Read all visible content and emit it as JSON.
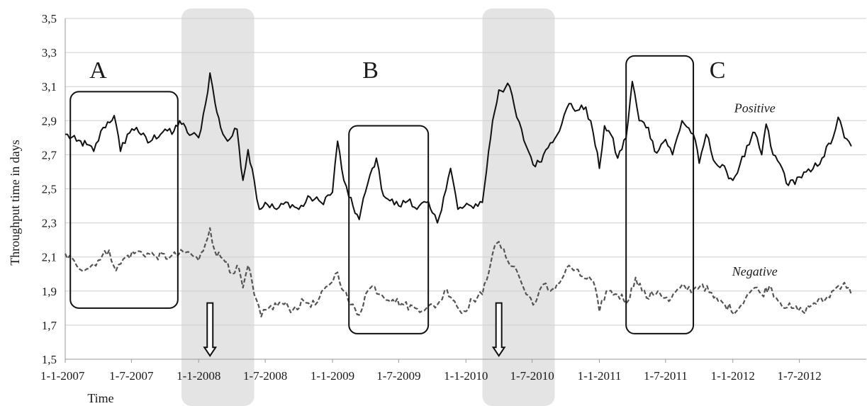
{
  "chart_data": {
    "type": "line",
    "xlabel": "Time",
    "ylabel": "Throughput time in days",
    "ylim": [
      1.5,
      3.5
    ],
    "xlim": [
      "2007-01-01",
      "2012-12-31"
    ],
    "y_ticks": [
      "1,5",
      "1,7",
      "1,9",
      "2,1",
      "2,3",
      "2,5",
      "2,7",
      "2,9",
      "3,1",
      "3,3",
      "3,5"
    ],
    "x_ticks": [
      {
        "date": "2007-01-01",
        "label": "1-1-2007"
      },
      {
        "date": "2007-07-01",
        "label": "1-7-2007"
      },
      {
        "date": "2008-01-01",
        "label": "1-1-2008"
      },
      {
        "date": "2008-07-01",
        "label": "1-7-2008"
      },
      {
        "date": "2009-01-01",
        "label": "1-1-2009"
      },
      {
        "date": "2009-07-01",
        "label": "1-7-2009"
      },
      {
        "date": "2010-01-01",
        "label": "1-1-2010"
      },
      {
        "date": "2010-07-01",
        "label": "1-7-2010"
      },
      {
        "date": "2011-01-01",
        "label": "1-1-2011"
      },
      {
        "date": "2011-07-01",
        "label": "1-7-2011"
      },
      {
        "date": "2012-01-01",
        "label": "1-1-2012"
      },
      {
        "date": "2012-07-01",
        "label": "1-7-2012"
      }
    ],
    "grid": "horizontal",
    "shaded_periods": [
      {
        "start": "2007-11-15",
        "end": "2008-06-01"
      },
      {
        "start": "2010-02-15",
        "end": "2010-09-01"
      }
    ],
    "arrows": [
      {
        "date": "2008-02-01",
        "y_top": 1.83,
        "y_bottom": 1.52
      },
      {
        "date": "2010-04-01",
        "y_top": 1.83,
        "y_bottom": 1.52
      }
    ],
    "boxes": [
      {
        "label": "A",
        "x_start": "2007-01-15",
        "x_end": "2007-11-05",
        "y_low": 1.8,
        "y_high": 3.07
      },
      {
        "label": "B",
        "x_start": "2009-02-15",
        "x_end": "2009-09-20",
        "y_low": 1.65,
        "y_high": 2.87
      },
      {
        "label": "C",
        "x_start": "2011-03-15",
        "x_end": "2011-09-15",
        "y_low": 1.65,
        "y_high": 3.28
      }
    ],
    "panel_labels": [
      {
        "text": "A",
        "date": "2007-04-01",
        "y": 3.15
      },
      {
        "text": "B",
        "date": "2009-04-15",
        "y": 3.15
      },
      {
        "text": "C",
        "date": "2011-11-20",
        "y": 3.15
      }
    ],
    "series": [
      {
        "name": "Positive",
        "label_date": "2012-03-01",
        "label_y": 2.95,
        "color": "#111111",
        "style": "solid",
        "points": [
          [
            "2007-01-01",
            2.82
          ],
          [
            "2007-02-01",
            2.78
          ],
          [
            "2007-03-01",
            2.76
          ],
          [
            "2007-03-20",
            2.72
          ],
          [
            "2007-04-15",
            2.86
          ],
          [
            "2007-05-15",
            2.93
          ],
          [
            "2007-06-01",
            2.72
          ],
          [
            "2007-06-20",
            2.82
          ],
          [
            "2007-07-15",
            2.86
          ],
          [
            "2007-08-15",
            2.77
          ],
          [
            "2007-10-01",
            2.85
          ],
          [
            "2007-10-20",
            2.82
          ],
          [
            "2007-11-10",
            2.9
          ],
          [
            "2007-12-01",
            2.83
          ],
          [
            "2008-01-01",
            2.8
          ],
          [
            "2008-01-20",
            3.0
          ],
          [
            "2008-02-01",
            3.18
          ],
          [
            "2008-02-15",
            3.0
          ],
          [
            "2008-03-01",
            2.86
          ],
          [
            "2008-03-20",
            2.78
          ],
          [
            "2008-04-15",
            2.85
          ],
          [
            "2008-05-01",
            2.55
          ],
          [
            "2008-05-15",
            2.73
          ],
          [
            "2008-06-01",
            2.55
          ],
          [
            "2008-06-15",
            2.38
          ],
          [
            "2008-07-01",
            2.42
          ],
          [
            "2008-08-01",
            2.38
          ],
          [
            "2008-09-01",
            2.42
          ],
          [
            "2008-10-01",
            2.38
          ],
          [
            "2008-11-01",
            2.45
          ],
          [
            "2008-12-01",
            2.42
          ],
          [
            "2009-01-01",
            2.48
          ],
          [
            "2009-01-15",
            2.78
          ],
          [
            "2009-02-01",
            2.55
          ],
          [
            "2009-02-15",
            2.45
          ],
          [
            "2009-03-15",
            2.32
          ],
          [
            "2009-04-01",
            2.48
          ],
          [
            "2009-04-20",
            2.62
          ],
          [
            "2009-05-01",
            2.68
          ],
          [
            "2009-05-15",
            2.5
          ],
          [
            "2009-06-01",
            2.44
          ],
          [
            "2009-07-01",
            2.4
          ],
          [
            "2009-08-01",
            2.44
          ],
          [
            "2009-08-20",
            2.38
          ],
          [
            "2009-09-15",
            2.42
          ],
          [
            "2009-10-01",
            2.36
          ],
          [
            "2009-10-15",
            2.3
          ],
          [
            "2009-11-01",
            2.45
          ],
          [
            "2009-11-20",
            2.62
          ],
          [
            "2009-12-10",
            2.38
          ],
          [
            "2010-01-15",
            2.4
          ],
          [
            "2010-02-15",
            2.42
          ],
          [
            "2010-03-15",
            2.9
          ],
          [
            "2010-04-01",
            3.08
          ],
          [
            "2010-05-01",
            3.1
          ],
          [
            "2010-05-20",
            2.92
          ],
          [
            "2010-06-15",
            2.75
          ],
          [
            "2010-07-10",
            2.63
          ],
          [
            "2010-08-01",
            2.7
          ],
          [
            "2010-08-20",
            2.77
          ],
          [
            "2010-09-20",
            2.88
          ],
          [
            "2010-10-10",
            3.0
          ],
          [
            "2010-11-01",
            2.96
          ],
          [
            "2010-11-25",
            2.98
          ],
          [
            "2010-12-15",
            2.83
          ],
          [
            "2011-01-01",
            2.62
          ],
          [
            "2011-01-15",
            2.87
          ],
          [
            "2011-02-01",
            2.82
          ],
          [
            "2011-02-20",
            2.68
          ],
          [
            "2011-03-15",
            2.8
          ],
          [
            "2011-04-01",
            3.13
          ],
          [
            "2011-04-20",
            2.9
          ],
          [
            "2011-05-15",
            2.86
          ],
          [
            "2011-06-01",
            2.72
          ],
          [
            "2011-07-01",
            2.79
          ],
          [
            "2011-07-20",
            2.7
          ],
          [
            "2011-08-15",
            2.9
          ],
          [
            "2011-09-15",
            2.82
          ],
          [
            "2011-10-01",
            2.65
          ],
          [
            "2011-10-20",
            2.82
          ],
          [
            "2011-11-15",
            2.65
          ],
          [
            "2011-12-15",
            2.6
          ],
          [
            "2012-01-01",
            2.55
          ],
          [
            "2012-01-20",
            2.64
          ],
          [
            "2012-02-15",
            2.76
          ],
          [
            "2012-03-01",
            2.83
          ],
          [
            "2012-03-20",
            2.7
          ],
          [
            "2012-04-01",
            2.88
          ],
          [
            "2012-04-20",
            2.7
          ],
          [
            "2012-05-15",
            2.62
          ],
          [
            "2012-06-01",
            2.52
          ],
          [
            "2012-07-01",
            2.57
          ],
          [
            "2012-08-01",
            2.6
          ],
          [
            "2012-09-01",
            2.68
          ],
          [
            "2012-10-01",
            2.8
          ],
          [
            "2012-10-15",
            2.92
          ],
          [
            "2012-11-01",
            2.8
          ],
          [
            "2012-11-20",
            2.75
          ]
        ]
      },
      {
        "name": "Negative",
        "label_date": "2012-03-01",
        "label_y": 1.99,
        "color": "#555555",
        "style": "dashed",
        "points": [
          [
            "2007-01-01",
            2.12
          ],
          [
            "2007-02-01",
            2.05
          ],
          [
            "2007-03-01",
            2.03
          ],
          [
            "2007-04-01",
            2.08
          ],
          [
            "2007-05-01",
            2.14
          ],
          [
            "2007-05-20",
            2.02
          ],
          [
            "2007-06-15",
            2.1
          ],
          [
            "2007-07-15",
            2.13
          ],
          [
            "2007-09-01",
            2.11
          ],
          [
            "2007-10-15",
            2.1
          ],
          [
            "2007-12-01",
            2.13
          ],
          [
            "2008-01-01",
            2.08
          ],
          [
            "2008-01-20",
            2.18
          ],
          [
            "2008-02-01",
            2.27
          ],
          [
            "2008-02-15",
            2.13
          ],
          [
            "2008-03-01",
            2.1
          ],
          [
            "2008-03-20",
            2.07
          ],
          [
            "2008-04-01",
            2.0
          ],
          [
            "2008-04-15",
            2.05
          ],
          [
            "2008-05-01",
            1.92
          ],
          [
            "2008-05-15",
            2.05
          ],
          [
            "2008-06-01",
            1.88
          ],
          [
            "2008-06-20",
            1.75
          ],
          [
            "2008-07-10",
            1.8
          ],
          [
            "2008-08-15",
            1.83
          ],
          [
            "2008-09-15",
            1.79
          ],
          [
            "2008-10-15",
            1.84
          ],
          [
            "2008-11-15",
            1.82
          ],
          [
            "2008-12-20",
            1.93
          ],
          [
            "2009-01-15",
            2.01
          ],
          [
            "2009-02-01",
            1.9
          ],
          [
            "2009-02-20",
            1.82
          ],
          [
            "2009-03-15",
            1.76
          ],
          [
            "2009-04-01",
            1.88
          ],
          [
            "2009-04-20",
            1.93
          ],
          [
            "2009-05-15",
            1.88
          ],
          [
            "2009-06-15",
            1.85
          ],
          [
            "2009-07-15",
            1.82
          ],
          [
            "2009-08-15",
            1.8
          ],
          [
            "2009-09-15",
            1.8
          ],
          [
            "2009-10-15",
            1.82
          ],
          [
            "2009-11-10",
            1.91
          ],
          [
            "2009-12-01",
            1.84
          ],
          [
            "2009-12-20",
            1.77
          ],
          [
            "2010-01-20",
            1.85
          ],
          [
            "2010-02-15",
            1.88
          ],
          [
            "2010-03-15",
            2.12
          ],
          [
            "2010-04-01",
            2.19
          ],
          [
            "2010-04-20",
            2.1
          ],
          [
            "2010-05-20",
            2.02
          ],
          [
            "2010-06-15",
            1.88
          ],
          [
            "2010-07-10",
            1.83
          ],
          [
            "2010-08-01",
            1.94
          ],
          [
            "2010-08-20",
            1.9
          ],
          [
            "2010-09-20",
            1.97
          ],
          [
            "2010-10-10",
            2.05
          ],
          [
            "2010-11-10",
            1.99
          ],
          [
            "2010-12-15",
            1.96
          ],
          [
            "2011-01-01",
            1.78
          ],
          [
            "2011-01-20",
            1.9
          ],
          [
            "2011-02-20",
            1.88
          ],
          [
            "2011-03-20",
            1.84
          ],
          [
            "2011-04-10",
            1.98
          ],
          [
            "2011-05-10",
            1.86
          ],
          [
            "2011-06-10",
            1.9
          ],
          [
            "2011-07-10",
            1.84
          ],
          [
            "2011-08-10",
            1.92
          ],
          [
            "2011-09-15",
            1.91
          ],
          [
            "2011-10-10",
            1.94
          ],
          [
            "2011-11-10",
            1.86
          ],
          [
            "2011-12-10",
            1.82
          ],
          [
            "2012-01-10",
            1.78
          ],
          [
            "2012-02-10",
            1.88
          ],
          [
            "2012-03-01",
            1.92
          ],
          [
            "2012-03-20",
            1.88
          ],
          [
            "2012-04-10",
            1.93
          ],
          [
            "2012-05-10",
            1.83
          ],
          [
            "2012-06-10",
            1.8
          ],
          [
            "2012-07-10",
            1.78
          ],
          [
            "2012-08-10",
            1.83
          ],
          [
            "2012-09-10",
            1.85
          ],
          [
            "2012-10-10",
            1.92
          ],
          [
            "2012-11-01",
            1.95
          ],
          [
            "2012-11-20",
            1.88
          ]
        ]
      }
    ]
  }
}
